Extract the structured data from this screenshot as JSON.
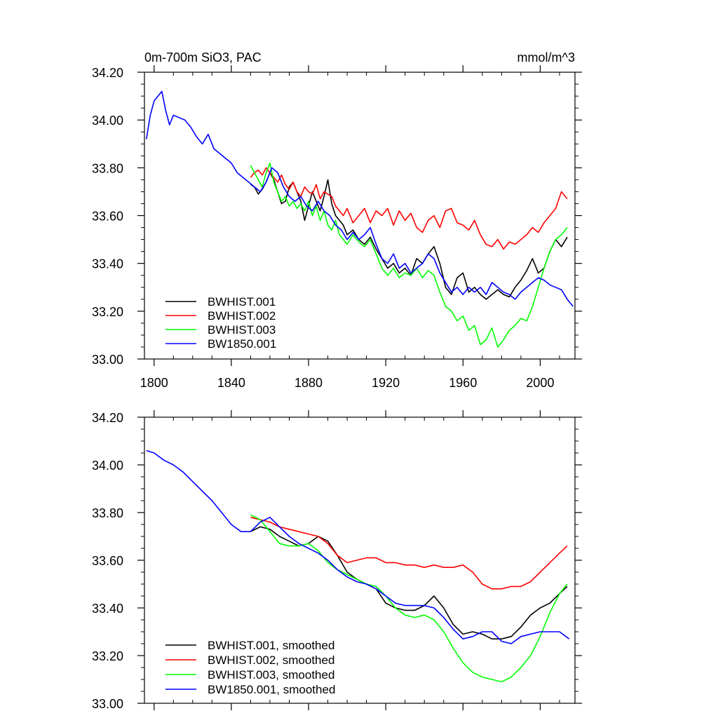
{
  "chart_data": [
    {
      "type": "line",
      "title_left": "0m-700m SiO3, PAC",
      "title_right": "mmol/m^3",
      "xlabel": "",
      "ylabel": "",
      "xlim": [
        1795,
        2018
      ],
      "ylim": [
        33.0,
        34.2
      ],
      "x_ticks": [
        1800,
        1840,
        1880,
        1920,
        1960,
        2000
      ],
      "x_tick_labels": [
        "1800",
        "1840",
        "1880",
        "1920",
        "1960",
        "2000"
      ],
      "y_ticks": [
        33.0,
        33.2,
        33.4,
        33.6,
        33.8,
        34.0,
        34.2
      ],
      "y_tick_labels": [
        "33.00",
        "33.20",
        "33.40",
        "33.60",
        "33.80",
        "34.00",
        "34.20"
      ],
      "grid": false,
      "legend_position": "bottom-left",
      "series": [
        {
          "name": "BWHIST.001",
          "color": "#000000",
          "x": [
            1850,
            1852,
            1854,
            1856,
            1858,
            1860,
            1862,
            1864,
            1866,
            1868,
            1870,
            1872,
            1874,
            1876,
            1878,
            1880,
            1882,
            1884,
            1886,
            1888,
            1890,
            1892,
            1894,
            1896,
            1898,
            1900,
            1903,
            1906,
            1909,
            1912,
            1915,
            1918,
            1921,
            1924,
            1927,
            1930,
            1933,
            1936,
            1939,
            1942,
            1945,
            1948,
            1951,
            1954,
            1957,
            1960,
            1963,
            1966,
            1969,
            1972,
            1975,
            1978,
            1981,
            1984,
            1987,
            1990,
            1993,
            1996,
            1999,
            2002,
            2005,
            2008,
            2011,
            2014
          ],
          "values": [
            33.73,
            33.72,
            33.69,
            33.71,
            33.74,
            33.78,
            33.75,
            33.7,
            33.65,
            33.66,
            33.72,
            33.74,
            33.7,
            33.66,
            33.58,
            33.64,
            33.7,
            33.66,
            33.62,
            33.68,
            33.75,
            33.65,
            33.6,
            33.58,
            33.56,
            33.52,
            33.54,
            33.5,
            33.48,
            33.51,
            33.46,
            33.42,
            33.38,
            33.4,
            33.36,
            33.38,
            33.35,
            33.42,
            33.4,
            33.44,
            33.47,
            33.4,
            33.3,
            33.27,
            33.34,
            33.36,
            33.28,
            33.3,
            33.27,
            33.25,
            33.27,
            33.29,
            33.27,
            33.26,
            33.3,
            33.33,
            33.37,
            33.42,
            33.36,
            33.38,
            33.45,
            33.5,
            33.47,
            33.51
          ]
        },
        {
          "name": "BWHIST.002",
          "color": "#ff0000",
          "x": [
            1850,
            1852,
            1854,
            1856,
            1858,
            1860,
            1862,
            1864,
            1866,
            1868,
            1870,
            1872,
            1874,
            1876,
            1878,
            1880,
            1882,
            1884,
            1886,
            1888,
            1890,
            1892,
            1894,
            1896,
            1898,
            1900,
            1903,
            1906,
            1909,
            1912,
            1915,
            1918,
            1921,
            1924,
            1927,
            1930,
            1933,
            1936,
            1939,
            1942,
            1945,
            1948,
            1951,
            1954,
            1957,
            1960,
            1963,
            1966,
            1969,
            1972,
            1975,
            1978,
            1981,
            1984,
            1987,
            1990,
            1993,
            1996,
            1999,
            2002,
            2005,
            2008,
            2011,
            2014
          ],
          "values": [
            33.76,
            33.78,
            33.79,
            33.77,
            33.8,
            33.78,
            33.76,
            33.74,
            33.77,
            33.73,
            33.71,
            33.74,
            33.7,
            33.68,
            33.72,
            33.7,
            33.69,
            33.73,
            33.67,
            33.7,
            33.69,
            33.68,
            33.64,
            33.62,
            33.6,
            33.63,
            33.57,
            33.6,
            33.63,
            33.57,
            33.62,
            33.6,
            33.63,
            33.56,
            33.62,
            33.58,
            33.61,
            33.55,
            33.53,
            33.58,
            33.6,
            33.55,
            33.62,
            33.63,
            33.57,
            33.56,
            33.54,
            33.58,
            33.52,
            33.48,
            33.47,
            33.5,
            33.46,
            33.49,
            33.48,
            33.5,
            33.52,
            33.55,
            33.53,
            33.57,
            33.6,
            33.63,
            33.7,
            33.67
          ]
        },
        {
          "name": "BWHIST.003",
          "color": "#00ff00",
          "x": [
            1850,
            1852,
            1854,
            1856,
            1858,
            1860,
            1862,
            1864,
            1866,
            1868,
            1870,
            1872,
            1874,
            1876,
            1878,
            1880,
            1882,
            1884,
            1886,
            1888,
            1890,
            1892,
            1894,
            1896,
            1898,
            1900,
            1903,
            1906,
            1909,
            1912,
            1915,
            1918,
            1921,
            1924,
            1927,
            1930,
            1933,
            1936,
            1939,
            1942,
            1945,
            1948,
            1951,
            1954,
            1957,
            1960,
            1963,
            1966,
            1969,
            1972,
            1975,
            1978,
            1981,
            1984,
            1987,
            1990,
            1993,
            1996,
            1999,
            2002,
            2005,
            2008,
            2011,
            2014
          ],
          "values": [
            33.81,
            33.78,
            33.75,
            33.72,
            33.78,
            33.82,
            33.74,
            33.7,
            33.66,
            33.68,
            33.64,
            33.66,
            33.63,
            33.65,
            33.62,
            33.66,
            33.6,
            33.64,
            33.58,
            33.62,
            33.56,
            33.54,
            33.58,
            33.52,
            33.5,
            33.48,
            33.52,
            33.49,
            33.47,
            33.5,
            33.44,
            33.38,
            33.35,
            33.38,
            33.34,
            33.36,
            33.35,
            33.38,
            33.34,
            33.37,
            33.35,
            33.28,
            33.22,
            33.2,
            33.16,
            33.18,
            33.12,
            33.14,
            33.06,
            33.08,
            33.13,
            33.05,
            33.08,
            33.12,
            33.14,
            33.17,
            33.16,
            33.22,
            33.3,
            33.38,
            33.45,
            33.5,
            33.52,
            33.55
          ]
        },
        {
          "name": "BW1850.001",
          "color": "#0000ff",
          "x": [
            1796,
            1798,
            1800,
            1802,
            1804,
            1806,
            1808,
            1810,
            1813,
            1816,
            1819,
            1822,
            1825,
            1828,
            1831,
            1834,
            1837,
            1840,
            1843,
            1846,
            1849,
            1852,
            1855,
            1858,
            1861,
            1864,
            1867,
            1870,
            1873,
            1876,
            1879,
            1882,
            1885,
            1888,
            1891,
            1894,
            1897,
            1900,
            1903,
            1906,
            1909,
            1912,
            1915,
            1918,
            1921,
            1924,
            1927,
            1930,
            1933,
            1936,
            1939,
            1942,
            1945,
            1948,
            1951,
            1954,
            1957,
            1960,
            1963,
            1966,
            1969,
            1972,
            1975,
            1978,
            1981,
            1984,
            1987,
            1990,
            1993,
            1996,
            1999,
            2002,
            2005,
            2008,
            2011,
            2014,
            2017
          ],
          "values": [
            33.92,
            34.02,
            34.08,
            34.1,
            34.12,
            34.04,
            33.98,
            34.02,
            34.01,
            34.0,
            33.97,
            33.93,
            33.9,
            33.94,
            33.88,
            33.86,
            33.84,
            33.82,
            33.78,
            33.76,
            33.74,
            33.72,
            33.7,
            33.74,
            33.8,
            33.78,
            33.72,
            33.68,
            33.66,
            33.68,
            33.64,
            33.62,
            33.66,
            33.62,
            33.6,
            33.56,
            33.54,
            33.5,
            33.53,
            33.5,
            33.52,
            33.55,
            33.48,
            33.42,
            33.4,
            33.44,
            33.38,
            33.4,
            33.36,
            33.38,
            33.4,
            33.44,
            33.42,
            33.36,
            33.32,
            33.28,
            33.3,
            33.27,
            33.3,
            33.28,
            33.3,
            33.27,
            33.32,
            33.3,
            33.28,
            33.27,
            33.25,
            33.28,
            33.3,
            33.32,
            33.34,
            33.33,
            33.31,
            33.3,
            33.29,
            33.25,
            33.22
          ]
        }
      ]
    },
    {
      "type": "line",
      "title_left": "",
      "title_right": "",
      "xlabel": "",
      "ylabel": "",
      "xlim": [
        1795,
        2018
      ],
      "ylim": [
        33.0,
        34.2
      ],
      "x_ticks": [
        1800,
        1840,
        1880,
        1920,
        1960,
        2000
      ],
      "x_tick_labels": [],
      "y_ticks": [
        33.0,
        33.2,
        33.4,
        33.6,
        33.8,
        34.0,
        34.2
      ],
      "y_tick_labels": [
        "33.00",
        "33.20",
        "33.40",
        "33.60",
        "33.80",
        "34.00",
        "34.20"
      ],
      "grid": false,
      "legend_position": "bottom-left",
      "series": [
        {
          "name": "BWHIST.001, smoothed",
          "color": "#000000",
          "x": [
            1850,
            1855,
            1860,
            1865,
            1870,
            1875,
            1880,
            1885,
            1890,
            1895,
            1900,
            1905,
            1910,
            1915,
            1920,
            1925,
            1930,
            1935,
            1940,
            1945,
            1950,
            1955,
            1960,
            1965,
            1970,
            1975,
            1980,
            1985,
            1990,
            1995,
            2000,
            2005,
            2010,
            2014
          ],
          "values": [
            33.72,
            33.74,
            33.73,
            33.7,
            33.68,
            33.66,
            33.67,
            33.7,
            33.68,
            33.62,
            33.55,
            33.52,
            33.5,
            33.48,
            33.42,
            33.4,
            33.39,
            33.39,
            33.41,
            33.45,
            33.4,
            33.33,
            33.29,
            33.3,
            33.29,
            33.27,
            33.27,
            33.28,
            33.32,
            33.37,
            33.4,
            33.42,
            33.46,
            33.49
          ]
        },
        {
          "name": "BWHIST.002, smoothed",
          "color": "#ff0000",
          "x": [
            1850,
            1855,
            1860,
            1865,
            1870,
            1875,
            1880,
            1885,
            1890,
            1895,
            1900,
            1905,
            1910,
            1915,
            1920,
            1925,
            1930,
            1935,
            1940,
            1945,
            1950,
            1955,
            1960,
            1965,
            1970,
            1975,
            1980,
            1985,
            1990,
            1995,
            2000,
            2005,
            2010,
            2014
          ],
          "values": [
            33.78,
            33.77,
            33.76,
            33.74,
            33.73,
            33.72,
            33.71,
            33.7,
            33.67,
            33.62,
            33.59,
            33.6,
            33.61,
            33.61,
            33.59,
            33.59,
            33.58,
            33.58,
            33.57,
            33.58,
            33.57,
            33.57,
            33.58,
            33.55,
            33.5,
            33.48,
            33.48,
            33.49,
            33.49,
            33.51,
            33.55,
            33.59,
            33.63,
            33.66
          ]
        },
        {
          "name": "BWHIST.003, smoothed",
          "color": "#00ff00",
          "x": [
            1850,
            1855,
            1860,
            1865,
            1870,
            1875,
            1880,
            1885,
            1890,
            1895,
            1900,
            1905,
            1910,
            1915,
            1920,
            1925,
            1930,
            1935,
            1940,
            1945,
            1950,
            1955,
            1960,
            1965,
            1970,
            1975,
            1980,
            1985,
            1990,
            1995,
            2000,
            2005,
            2010,
            2014
          ],
          "values": [
            33.79,
            33.77,
            33.72,
            33.67,
            33.66,
            33.66,
            33.67,
            33.64,
            33.59,
            33.56,
            33.54,
            33.52,
            33.5,
            33.49,
            33.45,
            33.4,
            33.37,
            33.36,
            33.37,
            33.35,
            33.3,
            33.23,
            33.17,
            33.13,
            33.11,
            33.1,
            33.09,
            33.11,
            33.15,
            33.2,
            33.28,
            33.38,
            33.46,
            33.5
          ]
        },
        {
          "name": "BW1850.001, smoothed",
          "color": "#0000ff",
          "x": [
            1796,
            1800,
            1805,
            1810,
            1815,
            1820,
            1825,
            1830,
            1835,
            1840,
            1845,
            1850,
            1855,
            1860,
            1865,
            1870,
            1875,
            1880,
            1885,
            1890,
            1895,
            1900,
            1905,
            1910,
            1915,
            1920,
            1925,
            1930,
            1935,
            1940,
            1945,
            1950,
            1955,
            1960,
            1965,
            1970,
            1975,
            1980,
            1985,
            1990,
            1995,
            2000,
            2005,
            2010,
            2015
          ],
          "values": [
            34.06,
            34.05,
            34.02,
            34.0,
            33.97,
            33.93,
            33.89,
            33.85,
            33.8,
            33.75,
            33.72,
            33.72,
            33.76,
            33.78,
            33.74,
            33.7,
            33.67,
            33.65,
            33.63,
            33.6,
            33.56,
            33.53,
            33.51,
            33.5,
            33.48,
            33.45,
            33.42,
            33.41,
            33.41,
            33.41,
            33.4,
            33.36,
            33.31,
            33.27,
            33.28,
            33.3,
            33.3,
            33.26,
            33.25,
            33.28,
            33.29,
            33.3,
            33.3,
            33.3,
            33.27
          ]
        }
      ]
    }
  ]
}
